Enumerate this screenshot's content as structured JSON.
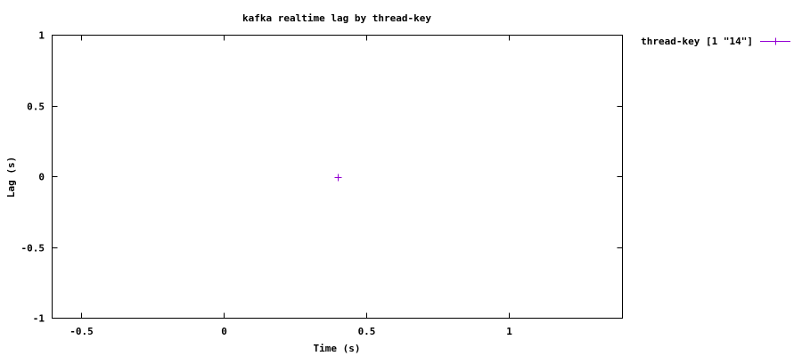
{
  "chart_data": {
    "type": "scatter",
    "title": "kafka realtime lag by thread-key",
    "xlabel": "Time (s)",
    "ylabel": "Lag (s)",
    "xlim": [
      -0.6,
      1.4
    ],
    "ylim": [
      -1,
      1
    ],
    "x_ticks": [
      -0.5,
      0,
      0.5,
      1
    ],
    "x_tick_labels": [
      "-0.5",
      "0",
      "0.5",
      "1"
    ],
    "y_ticks": [
      1,
      0.5,
      0,
      -0.5,
      -1
    ],
    "y_tick_labels": [
      "1",
      "0.5",
      "0",
      "-0.5",
      "-1"
    ],
    "grid": false,
    "legend_position": "outside-top-right",
    "series": [
      {
        "name": "thread-key [1 \"14\"]",
        "color": "#9400d3",
        "marker": "plus",
        "points": [
          {
            "x": 0.4,
            "y": 0
          }
        ]
      }
    ]
  }
}
